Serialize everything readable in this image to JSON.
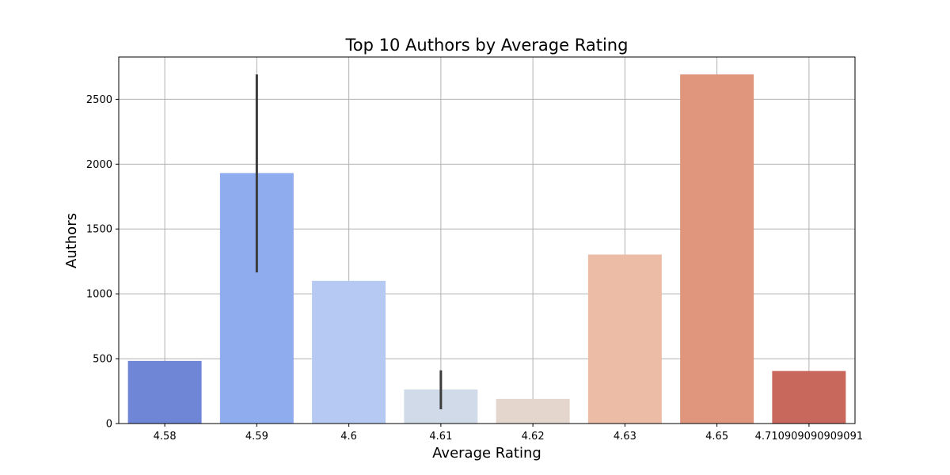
{
  "chart_data": {
    "type": "bar",
    "title": "Top 10 Authors by Average Rating",
    "xlabel": "Average Rating",
    "ylabel": "Authors",
    "categories": [
      "4.58",
      "4.59",
      "4.6",
      "4.61",
      "4.62",
      "4.63",
      "4.65",
      "4.710909090909091"
    ],
    "values": [
      483,
      1931,
      1100,
      263,
      190,
      1303,
      2692,
      405
    ],
    "error_bars": [
      null,
      {
        "low": 1165,
        "high": 2692
      },
      null,
      {
        "low": 110,
        "high": 410
      },
      null,
      null,
      null,
      null
    ],
    "ylim": [
      0,
      2826
    ],
    "yticks": [
      0,
      500,
      1000,
      1500,
      2000,
      2500
    ],
    "grid": true,
    "colors": [
      "#6f86d6",
      "#8fadee",
      "#b5c9f3",
      "#d1dae8",
      "#e5d6cd",
      "#ecbca6",
      "#e0967d",
      "#c8675c"
    ],
    "error_bar_color": "#3c3c3c"
  }
}
